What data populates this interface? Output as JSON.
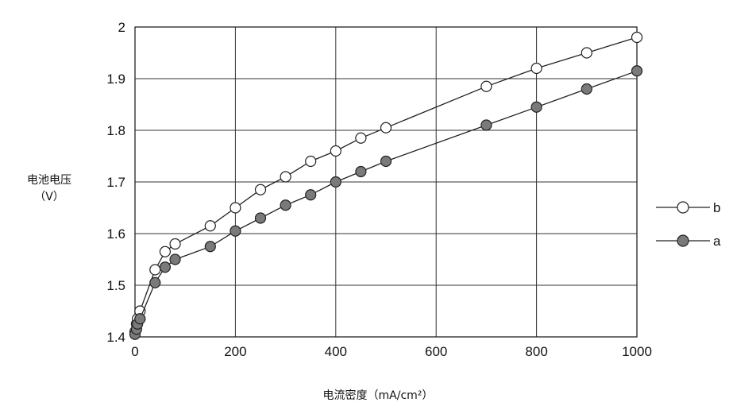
{
  "chart_data": {
    "type": "line",
    "title": "",
    "xlabel": "电流密度（mA/cm²）",
    "ylabel_line1": "电池电压",
    "ylabel_line2": "（V）",
    "xlim": [
      0,
      1000
    ],
    "ylim": [
      1.4,
      2.0
    ],
    "x_ticks": [
      0,
      200,
      400,
      600,
      800,
      1000
    ],
    "y_ticks": [
      1.4,
      1.5,
      1.6,
      1.7,
      1.8,
      1.9,
      2.0
    ],
    "x_tick_labels": [
      "0",
      "200",
      "400",
      "600",
      "800",
      "1000"
    ],
    "y_tick_labels": [
      "1.4",
      "1.5",
      "1.6",
      "1.7",
      "1.8",
      "1.9",
      "2"
    ],
    "grid": true,
    "legend_position": "right",
    "series": [
      {
        "name": "b",
        "marker": "open-circle",
        "color": "#ffffff",
        "points": [
          [
            0,
            1.41
          ],
          [
            3,
            1.425
          ],
          [
            5,
            1.435
          ],
          [
            10,
            1.45
          ],
          [
            40,
            1.53
          ],
          [
            60,
            1.565
          ],
          [
            80,
            1.58
          ],
          [
            150,
            1.615
          ],
          [
            200,
            1.65
          ],
          [
            250,
            1.685
          ],
          [
            300,
            1.71
          ],
          [
            350,
            1.74
          ],
          [
            400,
            1.76
          ],
          [
            450,
            1.785
          ],
          [
            500,
            1.805
          ],
          [
            700,
            1.885
          ],
          [
            800,
            1.92
          ],
          [
            900,
            1.95
          ],
          [
            1000,
            1.98
          ]
        ]
      },
      {
        "name": "a",
        "marker": "filled-circle",
        "color": "#7a7a7a",
        "points": [
          [
            0,
            1.405
          ],
          [
            3,
            1.415
          ],
          [
            5,
            1.425
          ],
          [
            10,
            1.435
          ],
          [
            40,
            1.505
          ],
          [
            60,
            1.535
          ],
          [
            80,
            1.55
          ],
          [
            150,
            1.575
          ],
          [
            200,
            1.605
          ],
          [
            250,
            1.63
          ],
          [
            300,
            1.655
          ],
          [
            350,
            1.675
          ],
          [
            400,
            1.7
          ],
          [
            450,
            1.72
          ],
          [
            500,
            1.74
          ],
          [
            700,
            1.81
          ],
          [
            800,
            1.845
          ],
          [
            900,
            1.88
          ],
          [
            1000,
            1.915
          ]
        ]
      }
    ]
  }
}
